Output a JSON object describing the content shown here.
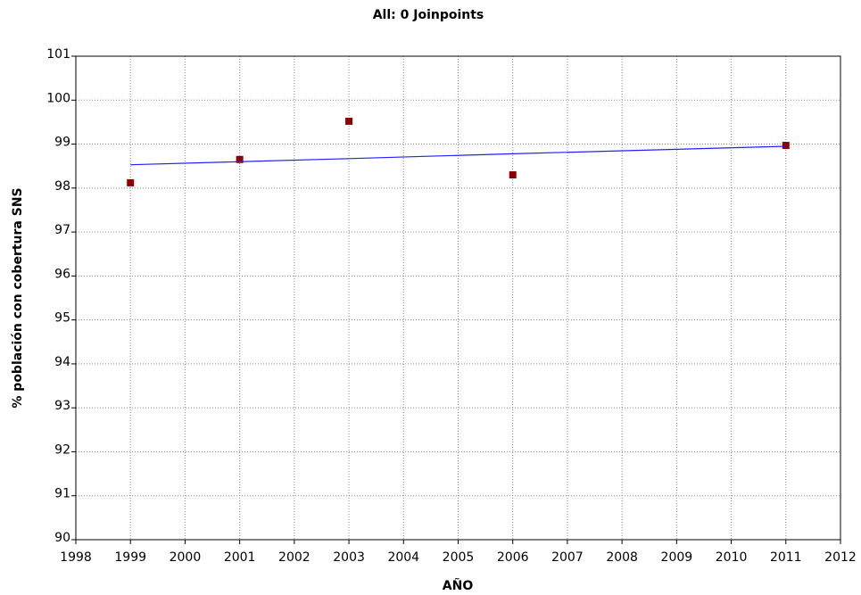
{
  "chart_data": {
    "type": "scatter",
    "title": "All: 0 Joinpoints",
    "xlabel": "AÑO",
    "ylabel": "% población con cobertura SNS",
    "x": [
      1999,
      2001,
      2003,
      2006,
      2011
    ],
    "series": [
      {
        "style": "markers",
        "color": "#8b0000",
        "values": [
          98.12,
          98.65,
          99.52,
          98.3,
          98.97
        ]
      },
      {
        "style": "line",
        "color": "#2020ff",
        "values": [
          98.53,
          98.6,
          98.67,
          98.78,
          98.95
        ]
      }
    ],
    "xlim": [
      1998,
      2012
    ],
    "xticks": [
      1998,
      1999,
      2000,
      2001,
      2002,
      2003,
      2004,
      2005,
      2006,
      2007,
      2008,
      2009,
      2010,
      2011,
      2012
    ],
    "ylim": [
      90,
      101
    ],
    "yticks": [
      90,
      91,
      92,
      93,
      94,
      95,
      96,
      97,
      98,
      99,
      100,
      101
    ],
    "grid": true
  }
}
